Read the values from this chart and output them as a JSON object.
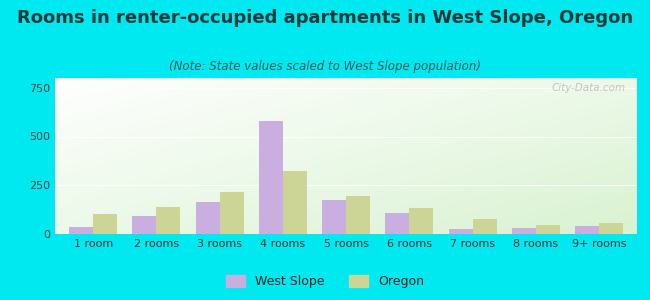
{
  "title": "Rooms in renter-occupied apartments in West Slope, Oregon",
  "subtitle": "(Note: State values scaled to West Slope population)",
  "categories": [
    "1 room",
    "2 rooms",
    "3 rooms",
    "4 rooms",
    "5 rooms",
    "6 rooms",
    "7 rooms",
    "8 rooms",
    "9+ rooms"
  ],
  "west_slope": [
    35,
    90,
    165,
    580,
    175,
    110,
    25,
    30,
    40
  ],
  "oregon": [
    105,
    140,
    215,
    325,
    195,
    135,
    75,
    45,
    55
  ],
  "west_slope_color": "#c9aee0",
  "oregon_color": "#cdd596",
  "background_outer": "#00e8f0",
  "ylim": [
    0,
    800
  ],
  "yticks": [
    0,
    250,
    500,
    750
  ],
  "bar_width": 0.38,
  "title_fontsize": 13,
  "subtitle_fontsize": 8.5,
  "tick_fontsize": 8,
  "legend_fontsize": 9,
  "watermark": "City-Data.com"
}
